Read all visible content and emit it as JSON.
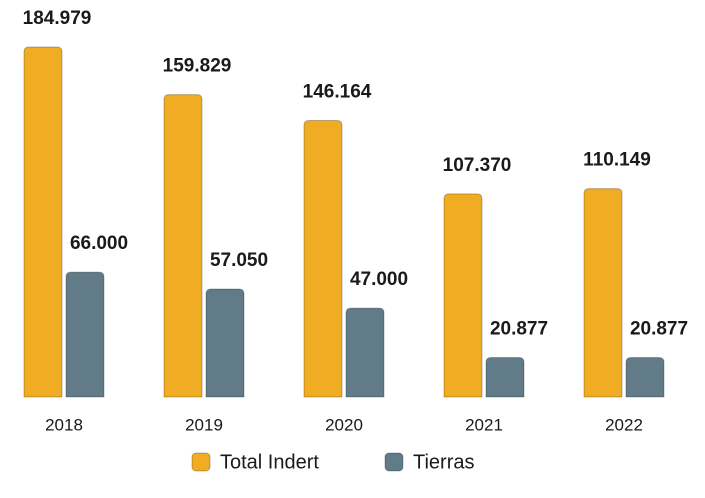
{
  "chart_data": {
    "type": "bar",
    "categories": [
      "2018",
      "2019",
      "2020",
      "2021",
      "2022"
    ],
    "series": [
      {
        "name": "Total Indert",
        "color": "#f0ac22",
        "values": [
          184979,
          159829,
          146164,
          107370,
          110149
        ],
        "value_labels": [
          "184.979",
          "159.829",
          "146.164",
          "107.370",
          "110.149"
        ]
      },
      {
        "name": "Tierras",
        "color": "#617c88",
        "values": [
          66000,
          57050,
          47000,
          20877,
          20877
        ],
        "value_labels": [
          "66.000",
          "57.050",
          "47.000",
          "20.877",
          "20.877"
        ]
      }
    ],
    "legend": "bottom"
  }
}
